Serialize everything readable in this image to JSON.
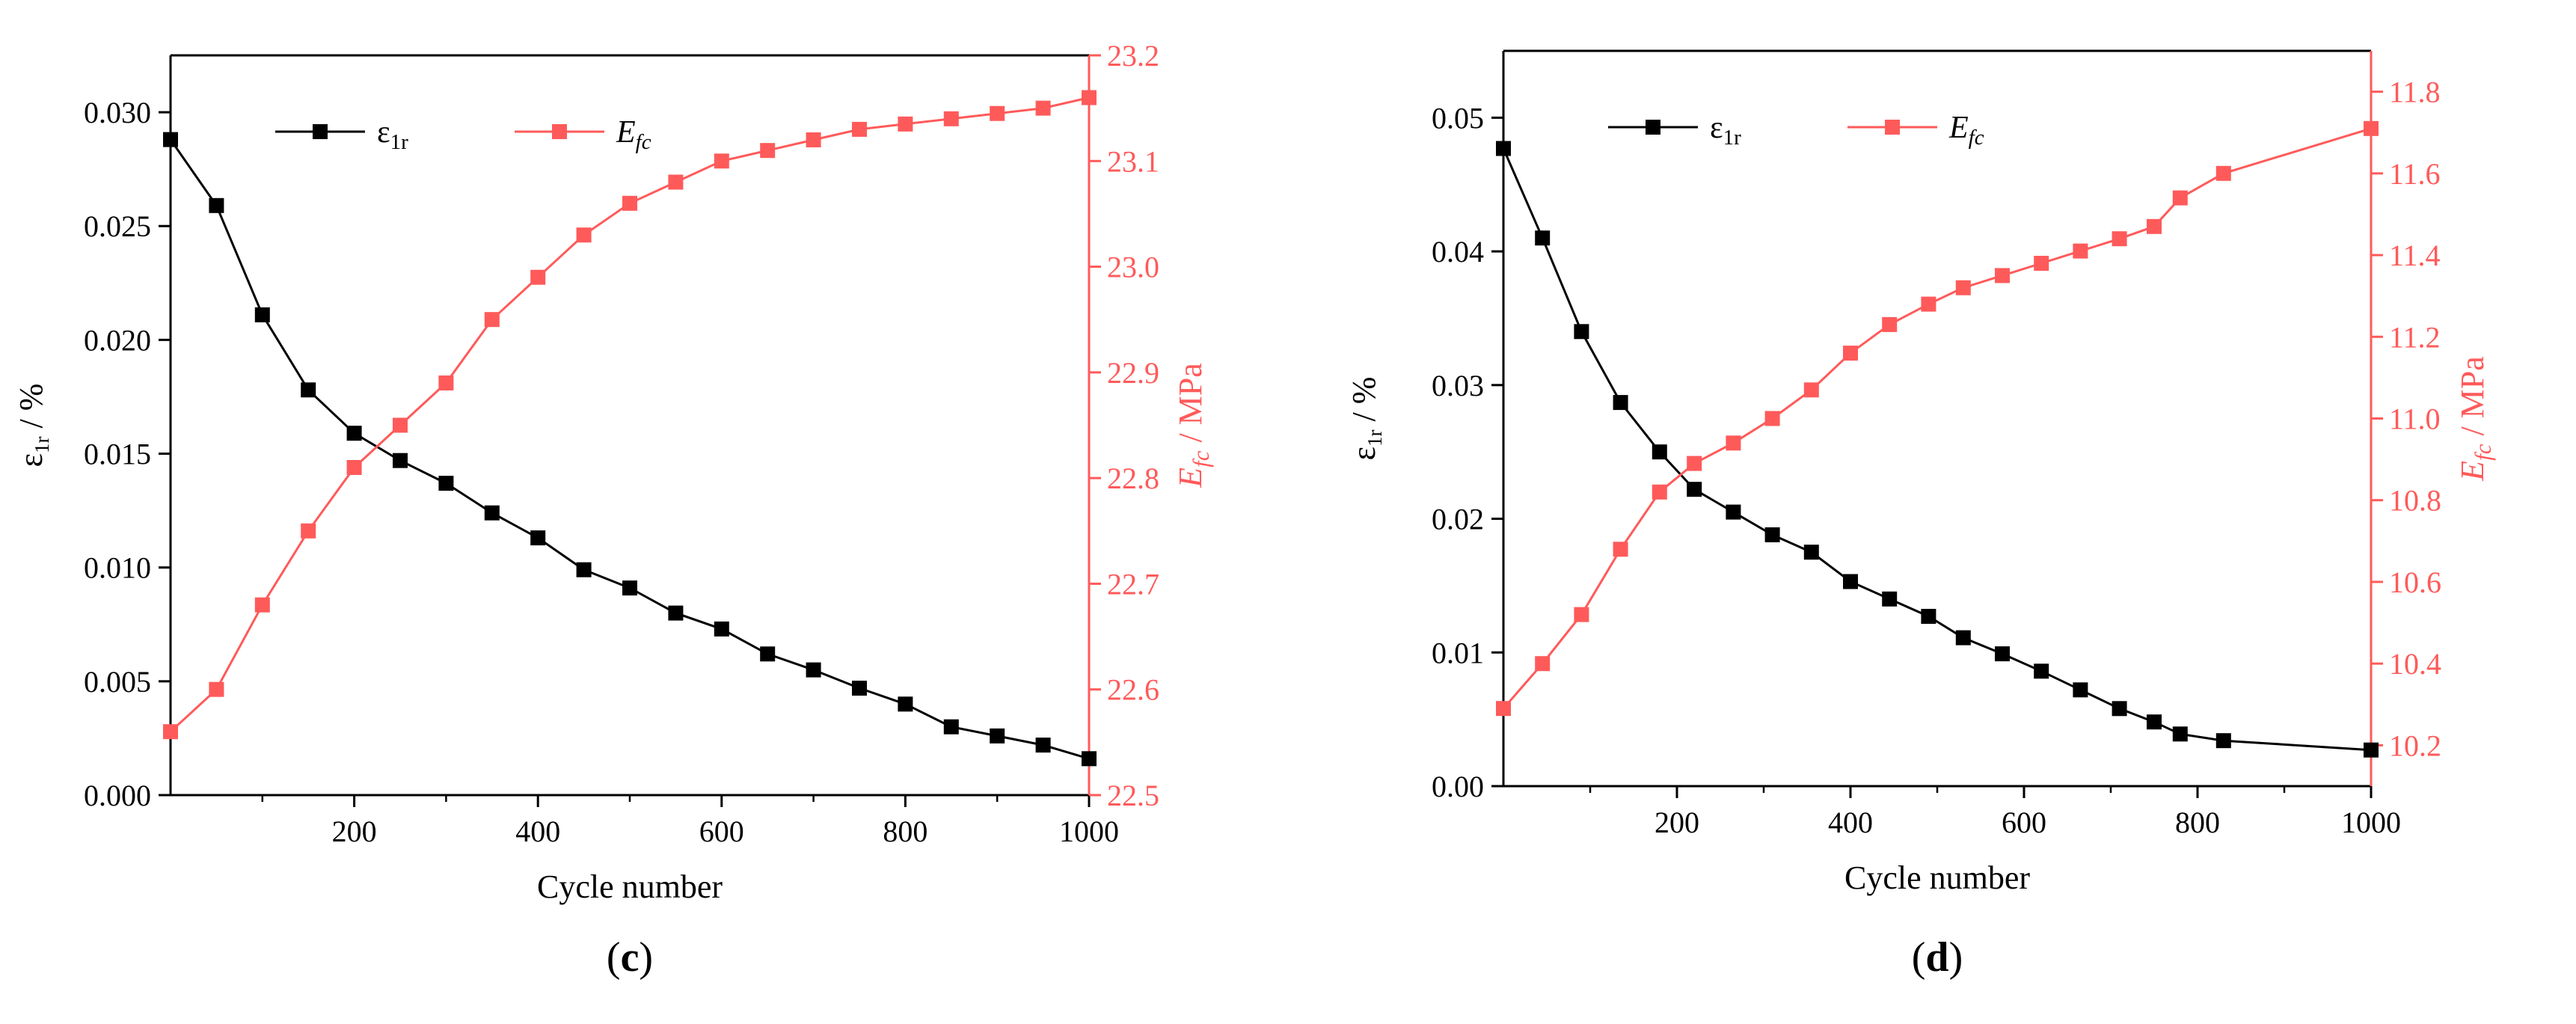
{
  "chart_data": [
    {
      "type": "line",
      "panel_label": "c",
      "xlabel": "Cycle number",
      "ylabel_left": "ε1r / %",
      "ylabel_right": "Efc / MPa",
      "xlim": [
        0,
        1000
      ],
      "ylim_left": [
        0.0,
        0.0325
      ],
      "ylim_right": [
        22.5,
        23.2
      ],
      "x_ticks": [
        200,
        400,
        600,
        800,
        1000
      ],
      "y_left_ticks": [
        "0.000",
        "0.005",
        "0.010",
        "0.015",
        "0.020",
        "0.025",
        "0.030"
      ],
      "y_right_ticks": [
        "22.5",
        "22.6",
        "22.7",
        "22.8",
        "22.9",
        "23.0",
        "23.1",
        "23.2"
      ],
      "grid": false,
      "legend_position": "top",
      "colors": {
        "left": "#000000",
        "right": "#ff5a5a"
      },
      "series": [
        {
          "name": "ε1r",
          "axis": "left",
          "x": [
            0,
            50,
            100,
            150,
            200,
            250,
            300,
            350,
            400,
            450,
            500,
            550,
            600,
            650,
            700,
            750,
            800,
            850,
            900,
            950,
            1000
          ],
          "values": [
            0.0288,
            0.0259,
            0.0211,
            0.0178,
            0.0159,
            0.0147,
            0.0137,
            0.0124,
            0.0113,
            0.0099,
            0.0091,
            0.008,
            0.0073,
            0.0062,
            0.0055,
            0.0047,
            0.004,
            0.003,
            0.0026,
            0.0022,
            0.0016
          ]
        },
        {
          "name": "Efc",
          "axis": "right",
          "x": [
            0,
            50,
            100,
            150,
            200,
            250,
            300,
            350,
            400,
            450,
            500,
            550,
            600,
            650,
            700,
            750,
            800,
            850,
            900,
            950,
            1000
          ],
          "values": [
            22.56,
            22.6,
            22.68,
            22.75,
            22.81,
            22.85,
            22.89,
            22.95,
            22.99,
            23.03,
            23.06,
            23.08,
            23.1,
            23.11,
            23.12,
            23.13,
            23.135,
            23.14,
            23.145,
            23.15,
            23.16
          ]
        }
      ]
    },
    {
      "type": "line",
      "panel_label": "d",
      "xlabel": "Cycle number",
      "ylabel_left": "ε1r / %",
      "ylabel_right": "Efc / MPa",
      "xlim": [
        0,
        1000
      ],
      "ylim_left": [
        0.0,
        0.055
      ],
      "ylim_right": [
        10.1,
        11.9
      ],
      "x_ticks": [
        200,
        400,
        600,
        800,
        1000
      ],
      "y_left_ticks": [
        "0.00",
        "0.01",
        "0.02",
        "0.03",
        "0.04",
        "0.05"
      ],
      "y_right_ticks": [
        "10.2",
        "10.4",
        "10.6",
        "10.8",
        "11.0",
        "11.2",
        "11.4",
        "11.6",
        "11.8"
      ],
      "grid": false,
      "legend_position": "top",
      "colors": {
        "left": "#000000",
        "right": "#ff5a5a"
      },
      "series": [
        {
          "name": "ε1r",
          "axis": "left",
          "x": [
            0,
            45,
            90,
            135,
            180,
            220,
            265,
            310,
            355,
            400,
            445,
            490,
            530,
            575,
            620,
            665,
            710,
            750,
            780,
            830,
            1000
          ],
          "values": [
            0.0477,
            0.041,
            0.034,
            0.0287,
            0.025,
            0.0222,
            0.0205,
            0.0188,
            0.0175,
            0.0153,
            0.014,
            0.0127,
            0.0111,
            0.0099,
            0.0086,
            0.0072,
            0.0058,
            0.0048,
            0.0039,
            0.0034,
            0.0027
          ]
        },
        {
          "name": "Efc",
          "axis": "right",
          "x": [
            0,
            45,
            90,
            135,
            180,
            220,
            265,
            310,
            355,
            400,
            445,
            490,
            530,
            575,
            620,
            665,
            710,
            750,
            780,
            830,
            1000
          ],
          "values": [
            10.29,
            10.4,
            10.52,
            10.68,
            10.82,
            10.89,
            10.94,
            11.0,
            11.07,
            11.16,
            11.23,
            11.28,
            11.32,
            11.35,
            11.38,
            11.41,
            11.44,
            11.47,
            11.54,
            11.6,
            11.71
          ]
        }
      ]
    }
  ]
}
